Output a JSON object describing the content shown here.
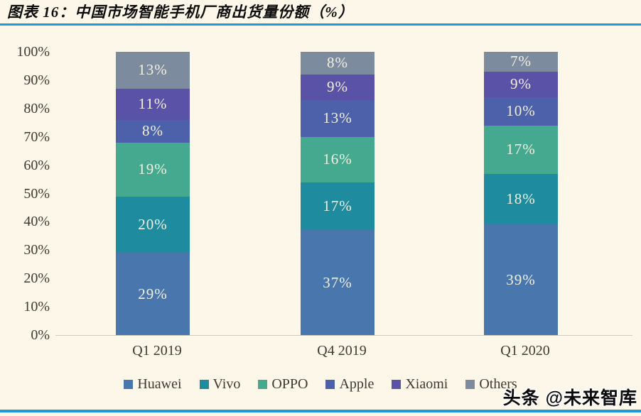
{
  "header": {
    "title": "图表 16：中国市场智能手机厂商出货量份额（%）"
  },
  "watermark": "头条 @未来智库",
  "colors": {
    "background": "#fcf7e8",
    "accent_rule": "#1d9bd8",
    "axis_line": "#d0cabb",
    "axis_text": "#3e3a33",
    "bar_value_text": "#f4f0e0"
  },
  "chart_data": {
    "type": "bar",
    "stacked": true,
    "title": "中国市场智能手机厂商出货量份额（%）",
    "categories": [
      "Q1 2019",
      "Q4 2019",
      "Q1 2020"
    ],
    "series": [
      {
        "name": "Huawei",
        "color": "#4a76ae",
        "values": [
          29,
          37,
          39
        ]
      },
      {
        "name": "Vivo",
        "color": "#1e8b9f",
        "values": [
          20,
          17,
          18
        ]
      },
      {
        "name": "OPPO",
        "color": "#45a98f",
        "values": [
          19,
          16,
          17
        ]
      },
      {
        "name": "Apple",
        "color": "#4c61a9",
        "values": [
          8,
          13,
          10
        ]
      },
      {
        "name": "Xiaomi",
        "color": "#5a52a6",
        "values": [
          11,
          9,
          9
        ]
      },
      {
        "name": "Others",
        "color": "#7d8b9e",
        "values": [
          13,
          8,
          7
        ]
      }
    ],
    "y_ticks": [
      "0%",
      "10%",
      "20%",
      "30%",
      "40%",
      "50%",
      "60%",
      "70%",
      "80%",
      "90%",
      "100%"
    ],
    "ylim": [
      0,
      100
    ],
    "value_suffix": "%",
    "grid": false,
    "legend_position": "bottom"
  }
}
